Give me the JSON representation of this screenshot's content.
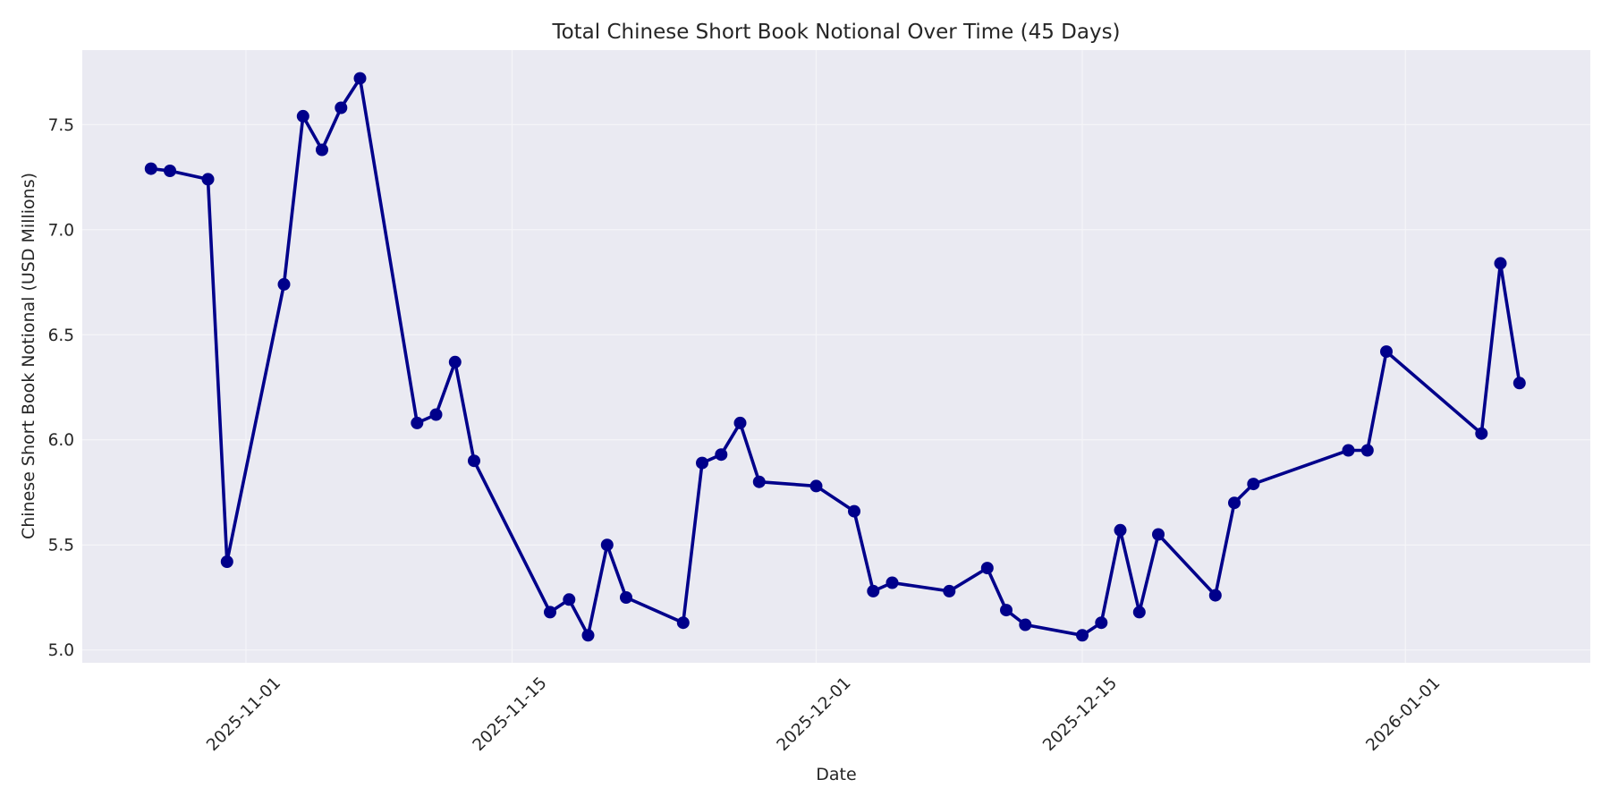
{
  "chart_data": {
    "type": "line",
    "title": "Total Chinese Short Book Notional Over Time (45 Days)",
    "xlabel": "Date",
    "ylabel": "Chinese Short Book Notional (USD Millions)",
    "x_tick_labels": [
      "2025-11-01",
      "2025-11-15",
      "2025-12-01",
      "2025-12-15",
      "2026-01-01"
    ],
    "x_tick_rotation": 45,
    "y_tick_labels": [
      "5.0",
      "5.5",
      "6.0",
      "6.5",
      "7.0",
      "7.5"
    ],
    "y_ticks": [
      5.0,
      5.5,
      6.0,
      6.5,
      7.0,
      7.5
    ],
    "ylim": [
      4.94,
      7.86
    ],
    "xlim": [
      "2025-10-23",
      "2026-01-10"
    ],
    "grid": true,
    "legend": null,
    "background_color": "#EAEAF2",
    "series": [
      {
        "name": "Total Chinese Short Book Notional",
        "color": "#00008B",
        "marker": "circle",
        "x": [
          "2025-10-27",
          "2025-10-28",
          "2025-10-30",
          "2025-10-31",
          "2025-11-03",
          "2025-11-04",
          "2025-11-05",
          "2025-11-06",
          "2025-11-07",
          "2025-11-10",
          "2025-11-11",
          "2025-11-12",
          "2025-11-13",
          "2025-11-17",
          "2025-11-18",
          "2025-11-19",
          "2025-11-20",
          "2025-11-21",
          "2025-11-24",
          "2025-11-25",
          "2025-11-26",
          "2025-11-27",
          "2025-11-28",
          "2025-12-01",
          "2025-12-03",
          "2025-12-04",
          "2025-12-05",
          "2025-12-08",
          "2025-12-10",
          "2025-12-11",
          "2025-12-12",
          "2025-12-15",
          "2025-12-16",
          "2025-12-17",
          "2025-12-18",
          "2025-12-19",
          "2025-12-22",
          "2025-12-23",
          "2025-12-24",
          "2025-12-29",
          "2025-12-30",
          "2025-12-31",
          "2026-01-05",
          "2026-01-06",
          "2026-01-07"
        ],
        "values": [
          7.29,
          7.28,
          7.24,
          5.42,
          6.74,
          7.54,
          7.38,
          7.58,
          7.72,
          6.08,
          6.12,
          6.37,
          5.9,
          5.18,
          5.24,
          5.07,
          5.5,
          5.25,
          5.13,
          5.89,
          5.93,
          6.08,
          5.8,
          5.78,
          5.66,
          5.28,
          5.32,
          5.28,
          5.39,
          5.19,
          5.12,
          5.07,
          5.13,
          5.57,
          5.18,
          5.55,
          5.26,
          5.7,
          5.79,
          5.95,
          5.95,
          6.42,
          6.03,
          6.84,
          6.27
        ]
      }
    ]
  }
}
